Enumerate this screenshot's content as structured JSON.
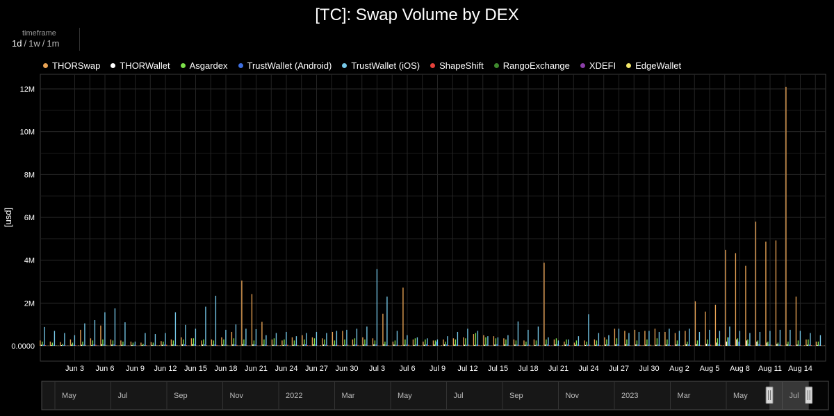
{
  "page": {
    "title": "[TC]: Swap Volume by DEX"
  },
  "timeframe": {
    "label": "timeframe",
    "options": [
      "1d",
      "1w",
      "1m"
    ],
    "selected": "1d"
  },
  "colors": {
    "background": "#000000",
    "grid": "#2b2b2b",
    "axis_text": "#ffffff"
  },
  "chart_data": {
    "type": "bar",
    "title": "[TC]: Swap Volume by DEX",
    "ylabel": "[usd]",
    "xlabel": "",
    "ylim": [
      0,
      12900000
    ],
    "y_ticks": [
      0,
      2000000,
      4000000,
      6000000,
      8000000,
      10000000,
      12000000
    ],
    "y_tick_labels": [
      "0.0000",
      "2M",
      "4M",
      "6M",
      "8M",
      "10M",
      "12M"
    ],
    "x_range": [
      "2023-05-31",
      "2023-08-17"
    ],
    "x_tick_labels": [
      "Jun 3",
      "Jun 6",
      "Jun 9",
      "Jun 12",
      "Jun 15",
      "Jun 18",
      "Jun 21",
      "Jun 24",
      "Jun 27",
      "Jun 30",
      "Jul 3",
      "Jul 6",
      "Jul 9",
      "Jul 12",
      "Jul 15",
      "Jul 18",
      "Jul 21",
      "Jul 24",
      "Jul 27",
      "Jul 30",
      "Aug 2",
      "Aug 5",
      "Aug 8",
      "Aug 11",
      "Aug 14"
    ],
    "grid": true,
    "legend_position": "top-left",
    "dates": [
      "2023-05-31",
      "2023-06-01",
      "2023-06-02",
      "2023-06-03",
      "2023-06-04",
      "2023-06-05",
      "2023-06-06",
      "2023-06-07",
      "2023-06-08",
      "2023-06-09",
      "2023-06-10",
      "2023-06-11",
      "2023-06-12",
      "2023-06-13",
      "2023-06-14",
      "2023-06-15",
      "2023-06-16",
      "2023-06-17",
      "2023-06-18",
      "2023-06-19",
      "2023-06-20",
      "2023-06-21",
      "2023-06-22",
      "2023-06-23",
      "2023-06-24",
      "2023-06-25",
      "2023-06-26",
      "2023-06-27",
      "2023-06-28",
      "2023-06-29",
      "2023-06-30",
      "2023-07-01",
      "2023-07-02",
      "2023-07-03",
      "2023-07-04",
      "2023-07-05",
      "2023-07-06",
      "2023-07-07",
      "2023-07-08",
      "2023-07-09",
      "2023-07-10",
      "2023-07-11",
      "2023-07-12",
      "2023-07-13",
      "2023-07-14",
      "2023-07-15",
      "2023-07-16",
      "2023-07-17",
      "2023-07-18",
      "2023-07-19",
      "2023-07-20",
      "2023-07-21",
      "2023-07-22",
      "2023-07-23",
      "2023-07-24",
      "2023-07-25",
      "2023-07-26",
      "2023-07-27",
      "2023-07-28",
      "2023-07-29",
      "2023-07-30",
      "2023-07-31",
      "2023-08-01",
      "2023-08-02",
      "2023-08-03",
      "2023-08-04",
      "2023-08-05",
      "2023-08-06",
      "2023-08-07",
      "2023-08-08",
      "2023-08-09",
      "2023-08-10",
      "2023-08-11",
      "2023-08-12",
      "2023-08-13",
      "2023-08-14",
      "2023-08-15",
      "2023-08-16"
    ],
    "series": [
      {
        "name": "THORSwap",
        "color": "#e9a354",
        "values": [
          250000,
          200000,
          180000,
          300000,
          750000,
          350000,
          950000,
          300000,
          250000,
          200000,
          150000,
          180000,
          220000,
          300000,
          400000,
          350000,
          250000,
          300000,
          400000,
          650000,
          3050000,
          2420000,
          1120000,
          300000,
          250000,
          400000,
          500000,
          400000,
          350000,
          650000,
          700000,
          300000,
          400000,
          350000,
          1500000,
          200000,
          2720000,
          300000,
          200000,
          250000,
          300000,
          350000,
          400000,
          550000,
          500000,
          450000,
          350000,
          300000,
          250000,
          300000,
          3880000,
          300000,
          200000,
          150000,
          250000,
          300000,
          400000,
          800000,
          700000,
          750000,
          700000,
          800000,
          650000,
          600000,
          700000,
          2080000,
          1600000,
          1920000,
          4480000,
          4330000,
          3740000,
          5800000,
          4870000,
          4920000,
          12100000,
          2300000,
          300000,
          200000
        ]
      },
      {
        "name": "THORWallet",
        "color": "#ffffff",
        "values": [
          50000,
          40000,
          30000,
          60000,
          50000,
          40000,
          80000,
          60000,
          50000,
          40000,
          30000,
          40000,
          50000,
          60000,
          70000,
          80000,
          60000,
          50000,
          60000,
          70000,
          80000,
          70000,
          60000,
          50000,
          40000,
          50000,
          60000,
          70000,
          60000,
          50000,
          40000,
          50000,
          60000,
          70000,
          80000,
          60000,
          50000,
          40000,
          50000,
          60000,
          70000,
          60000,
          50000,
          40000,
          50000,
          60000,
          70000,
          60000,
          50000,
          40000,
          60000,
          70000,
          60000,
          50000,
          40000,
          50000,
          60000,
          70000,
          80000,
          70000,
          60000,
          50000,
          60000,
          70000,
          80000,
          90000,
          100000,
          150000,
          200000,
          300000,
          250000,
          200000,
          150000,
          100000,
          80000,
          60000,
          50000,
          40000
        ]
      },
      {
        "name": "Asgardex",
        "color": "#7ce04a",
        "values": [
          200000,
          150000,
          100000,
          150000,
          200000,
          250000,
          300000,
          250000,
          200000,
          150000,
          100000,
          150000,
          200000,
          250000,
          300000,
          350000,
          300000,
          250000,
          300000,
          350000,
          300000,
          250000,
          300000,
          350000,
          300000,
          250000,
          300000,
          350000,
          300000,
          250000,
          300000,
          350000,
          300000,
          250000,
          200000,
          250000,
          300000,
          350000,
          300000,
          250000,
          200000,
          300000,
          350000,
          600000,
          400000,
          350000,
          300000,
          250000,
          200000,
          250000,
          300000,
          350000,
          300000,
          250000,
          200000,
          250000,
          300000,
          350000,
          300000,
          250000,
          300000,
          350000,
          300000,
          250000,
          200000,
          250000,
          300000,
          350000,
          400000,
          350000,
          300000,
          250000,
          200000,
          150000,
          200000,
          250000,
          300000,
          200000
        ]
      },
      {
        "name": "TrustWallet (Android)",
        "color": "#3e6fe0",
        "values": [
          60000,
          50000,
          40000,
          50000,
          60000,
          70000,
          80000,
          70000,
          60000,
          50000,
          40000,
          50000,
          60000,
          70000,
          80000,
          90000,
          80000,
          70000,
          60000,
          70000,
          80000,
          70000,
          60000,
          50000,
          60000,
          70000,
          80000,
          70000,
          60000,
          50000,
          60000,
          70000,
          80000,
          70000,
          60000,
          50000,
          60000,
          70000,
          80000,
          200000,
          70000,
          60000,
          50000,
          60000,
          70000,
          80000,
          70000,
          60000,
          50000,
          60000,
          70000,
          80000,
          70000,
          60000,
          50000,
          60000,
          70000,
          80000,
          70000,
          60000,
          50000,
          60000,
          70000,
          80000,
          70000,
          60000,
          70000,
          80000,
          400000,
          200000,
          100000,
          90000,
          80000,
          70000,
          60000,
          50000,
          60000,
          50000
        ]
      },
      {
        "name": "TrustWallet (iOS)",
        "color": "#76c8e8",
        "values": [
          880000,
          700000,
          600000,
          500000,
          1050000,
          1200000,
          1570000,
          1750000,
          1100000,
          200000,
          600000,
          550000,
          600000,
          1570000,
          980000,
          800000,
          1830000,
          2340000,
          750000,
          1000000,
          800000,
          780000,
          500000,
          600000,
          650000,
          450000,
          600000,
          650000,
          600000,
          700000,
          750000,
          800000,
          900000,
          3590000,
          2300000,
          700000,
          500000,
          400000,
          350000,
          300000,
          450000,
          650000,
          800000,
          700000,
          450000,
          400000,
          500000,
          1140000,
          750000,
          900000,
          400000,
          250000,
          300000,
          450000,
          1480000,
          600000,
          500000,
          800000,
          600000,
          650000,
          700000,
          650000,
          800000,
          700000,
          800000,
          650000,
          750000,
          700000,
          900000,
          700000,
          600000,
          650000,
          700000,
          750000,
          750000,
          700000,
          600000,
          500000
        ]
      },
      {
        "name": "ShapeShift",
        "color": "#e5413a",
        "values": [
          30000,
          20000,
          20000,
          30000,
          40000,
          50000,
          40000,
          30000,
          20000,
          20000,
          30000,
          40000,
          50000,
          40000,
          30000,
          20000,
          30000,
          40000,
          50000,
          40000,
          30000,
          20000,
          30000,
          40000,
          50000,
          40000,
          30000,
          20000,
          30000,
          40000,
          50000,
          40000,
          30000,
          20000,
          30000,
          40000,
          50000,
          40000,
          30000,
          20000,
          30000,
          40000,
          50000,
          40000,
          30000,
          20000,
          30000,
          40000,
          50000,
          40000,
          30000,
          20000,
          30000,
          40000,
          50000,
          40000,
          30000,
          20000,
          30000,
          40000,
          50000,
          40000,
          30000,
          20000,
          30000,
          40000,
          50000,
          40000,
          30000,
          20000,
          30000,
          40000,
          50000,
          40000,
          30000,
          20000,
          30000,
          20000
        ]
      },
      {
        "name": "RangoExchange",
        "color": "#3f8a2e",
        "values": [
          20000,
          30000,
          20000,
          10000,
          20000,
          30000,
          40000,
          30000,
          20000,
          10000,
          20000,
          30000,
          40000,
          30000,
          20000,
          10000,
          20000,
          30000,
          40000,
          30000,
          20000,
          10000,
          20000,
          30000,
          40000,
          30000,
          20000,
          10000,
          20000,
          30000,
          40000,
          30000,
          20000,
          10000,
          20000,
          30000,
          40000,
          30000,
          20000,
          10000,
          20000,
          30000,
          40000,
          30000,
          20000,
          10000,
          20000,
          30000,
          40000,
          30000,
          20000,
          10000,
          20000,
          30000,
          40000,
          30000,
          20000,
          10000,
          20000,
          30000,
          40000,
          30000,
          20000,
          10000,
          20000,
          30000,
          40000,
          30000,
          20000,
          10000,
          20000,
          30000,
          40000,
          30000,
          20000,
          10000,
          20000,
          10000
        ]
      },
      {
        "name": "XDEFI",
        "color": "#8b3fa8",
        "values": [
          10000,
          10000,
          20000,
          10000,
          10000,
          20000,
          10000,
          10000,
          20000,
          10000,
          10000,
          20000,
          10000,
          10000,
          20000,
          10000,
          10000,
          20000,
          10000,
          10000,
          20000,
          10000,
          10000,
          20000,
          10000,
          10000,
          20000,
          10000,
          10000,
          20000,
          10000,
          10000,
          20000,
          10000,
          10000,
          20000,
          10000,
          10000,
          20000,
          10000,
          10000,
          20000,
          10000,
          10000,
          20000,
          10000,
          10000,
          20000,
          10000,
          10000,
          20000,
          10000,
          10000,
          20000,
          10000,
          10000,
          20000,
          10000,
          10000,
          20000,
          10000,
          10000,
          20000,
          10000,
          10000,
          20000,
          10000,
          10000,
          20000,
          10000,
          10000,
          20000,
          10000,
          10000,
          20000,
          10000,
          10000,
          10000
        ]
      },
      {
        "name": "EdgeWallet",
        "color": "#f3e769",
        "values": [
          10000,
          10000,
          10000,
          20000,
          10000,
          10000,
          10000,
          20000,
          10000,
          10000,
          10000,
          20000,
          10000,
          10000,
          10000,
          20000,
          10000,
          10000,
          10000,
          20000,
          10000,
          10000,
          10000,
          20000,
          10000,
          10000,
          10000,
          20000,
          10000,
          10000,
          10000,
          20000,
          10000,
          10000,
          10000,
          20000,
          10000,
          10000,
          10000,
          20000,
          10000,
          10000,
          10000,
          20000,
          10000,
          10000,
          10000,
          20000,
          10000,
          10000,
          10000,
          20000,
          10000,
          10000,
          10000,
          20000,
          10000,
          10000,
          10000,
          20000,
          10000,
          10000,
          10000,
          20000,
          10000,
          10000,
          10000,
          20000,
          10000,
          10000,
          10000,
          20000,
          10000,
          10000,
          10000,
          20000,
          10000,
          10000
        ]
      }
    ]
  },
  "navigator": {
    "labels": [
      "May",
      "Jul",
      "Sep",
      "Nov",
      "2022",
      "Mar",
      "May",
      "Jul",
      "Sep",
      "Nov",
      "2023",
      "Mar",
      "May",
      "Jul"
    ],
    "window_start": 0.925,
    "window_end": 0.975
  }
}
